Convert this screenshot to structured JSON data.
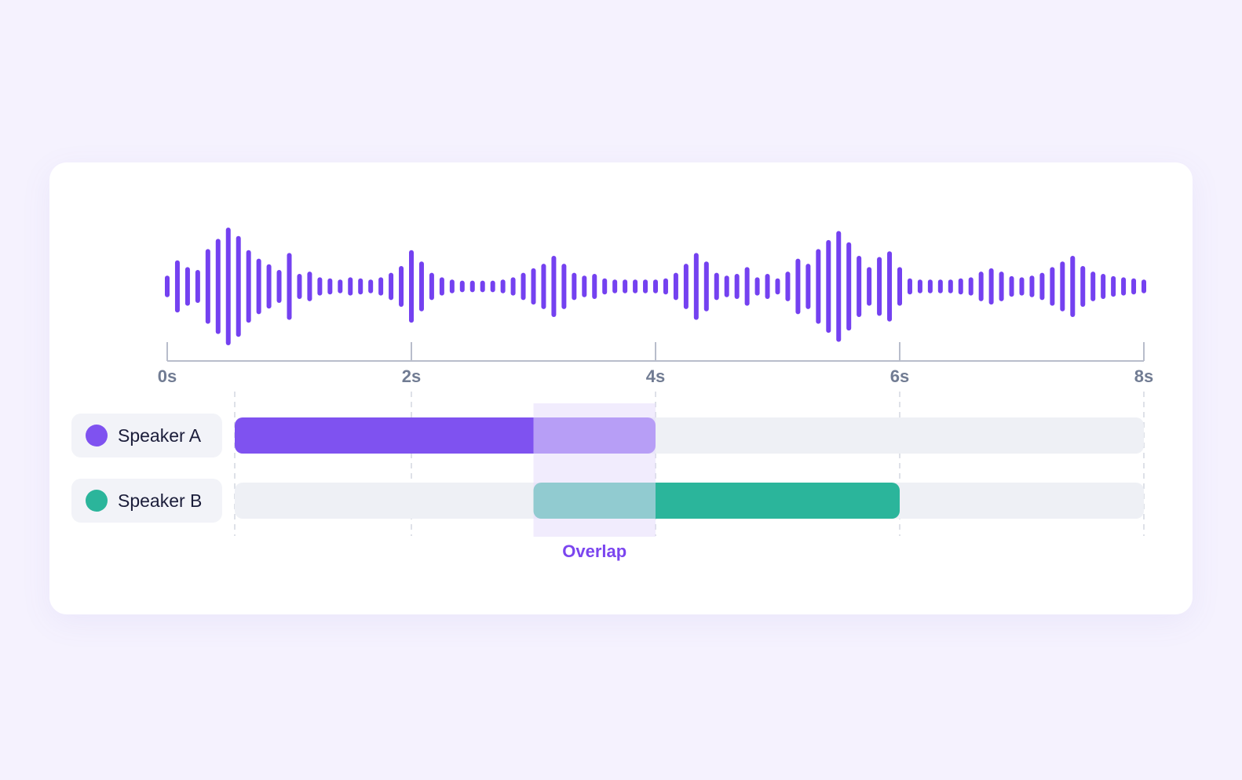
{
  "colors": {
    "background": "#f5f2fe",
    "card": "#ffffff",
    "waveform": "#7441f0",
    "speaker_a": "#7f52f0",
    "speaker_b": "#2bb59b",
    "track": "#eef0f5",
    "axis": "#b8bdcb",
    "tick_label": "#717c93",
    "overlap_fill": "#e6dcfb",
    "overlap_label": "#7b45ef",
    "chip": "#f2f3f8",
    "speaker_label": "#1b1d3a"
  },
  "timeline": {
    "ticks": [
      {
        "value": 0,
        "label": "0s"
      },
      {
        "value": 2,
        "label": "2s"
      },
      {
        "value": 4,
        "label": "4s"
      },
      {
        "value": 6,
        "label": "6s"
      },
      {
        "value": 8,
        "label": "8s"
      }
    ],
    "range": [
      0,
      8
    ]
  },
  "speakers": [
    {
      "name": "Speaker A",
      "color_key": "speaker_a",
      "start": 0.55,
      "end": 4.0
    },
    {
      "name": "Speaker B",
      "color_key": "speaker_b",
      "start": 3.0,
      "end": 6.0
    }
  ],
  "overlap": {
    "label": "Overlap",
    "start": 3.0,
    "end": 4.0
  },
  "waveform": {
    "amplitudes": [
      0.15,
      0.42,
      0.3,
      0.25,
      0.62,
      0.8,
      1.0,
      0.85,
      0.6,
      0.45,
      0.35,
      0.25,
      0.55,
      0.18,
      0.22,
      0.12,
      0.1,
      0.08,
      0.12,
      0.1,
      0.08,
      0.12,
      0.2,
      0.32,
      0.6,
      0.4,
      0.2,
      0.12,
      0.08,
      0.06,
      0.06,
      0.06,
      0.06,
      0.08,
      0.12,
      0.2,
      0.28,
      0.36,
      0.5,
      0.36,
      0.2,
      0.15,
      0.18,
      0.1,
      0.08,
      0.08,
      0.08,
      0.08,
      0.08,
      0.1,
      0.2,
      0.36,
      0.55,
      0.4,
      0.2,
      0.15,
      0.18,
      0.3,
      0.12,
      0.18,
      0.1,
      0.22,
      0.45,
      0.36,
      0.62,
      0.78,
      0.94,
      0.74,
      0.5,
      0.3,
      0.48,
      0.58,
      0.3,
      0.1,
      0.08,
      0.08,
      0.08,
      0.08,
      0.1,
      0.12,
      0.22,
      0.28,
      0.22,
      0.14,
      0.12,
      0.15,
      0.2,
      0.3,
      0.4,
      0.5,
      0.32,
      0.22,
      0.18,
      0.14,
      0.12,
      0.1,
      0.08
    ]
  }
}
